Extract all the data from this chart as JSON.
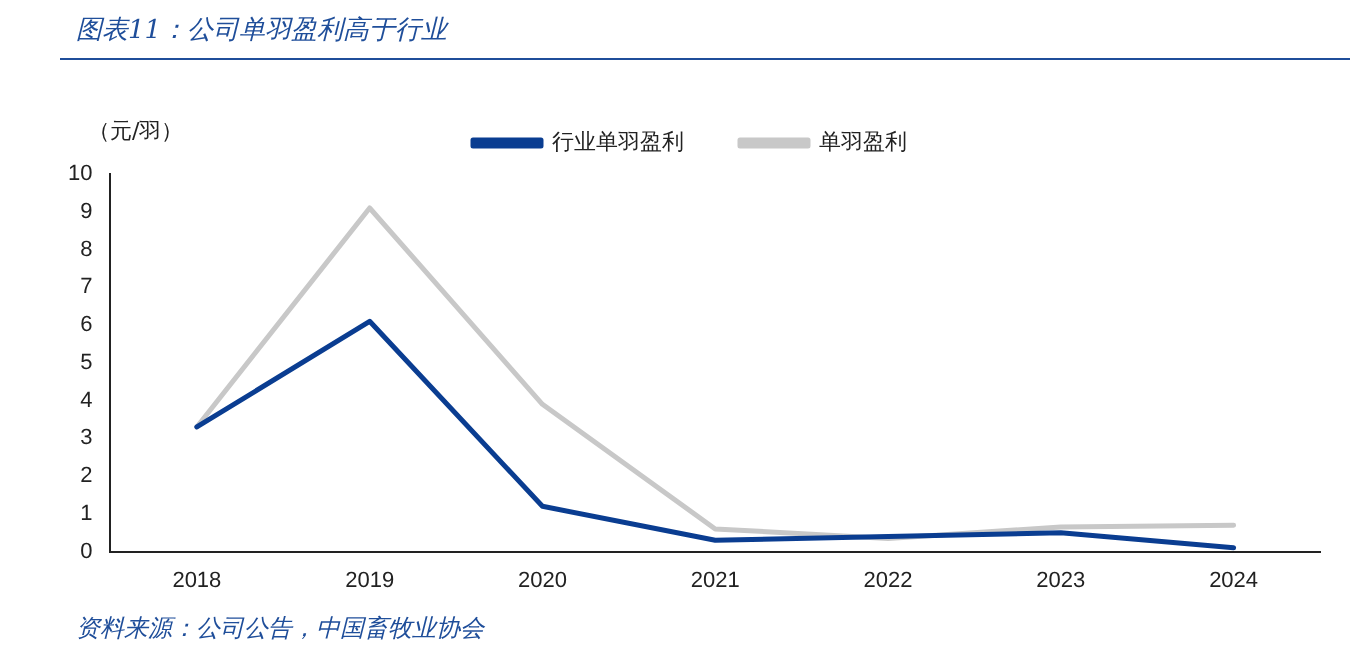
{
  "chart_data": {
    "type": "line",
    "title": "图表11：公司单羽盈利高于行业",
    "ylabel": "（元/羽）",
    "annotations": [
      "资料来源：公司公告，中国畜牧业协会"
    ],
    "categories": [
      "2018",
      "2019",
      "2020",
      "2021",
      "2022",
      "2023",
      "2024"
    ],
    "series": [
      {
        "name": "行业单羽盈利",
        "color": "#0a3d91",
        "values": [
          3.3,
          6.1,
          1.2,
          0.3,
          0.4,
          0.5,
          0.1
        ]
      },
      {
        "name": "单羽盈利",
        "color": "#c8c8c8",
        "values": [
          3.3,
          9.1,
          3.9,
          0.6,
          0.35,
          0.65,
          0.7
        ]
      }
    ],
    "ylim": [
      0,
      10
    ],
    "yticks": [
      0,
      1,
      2,
      3,
      4,
      5,
      6,
      7,
      8,
      9,
      10
    ],
    "grid": false,
    "legend": "top",
    "marker": "none",
    "line_style": "solid"
  }
}
